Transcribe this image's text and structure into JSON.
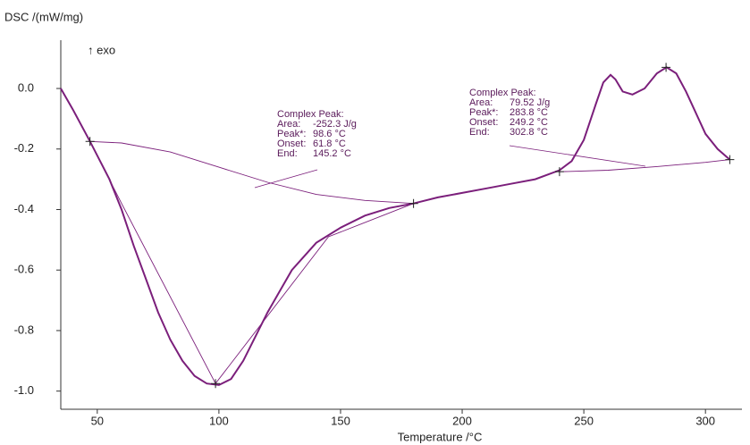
{
  "chart_data": {
    "type": "line",
    "y_label": "DSC /(mW/mg)",
    "x_label": "Temperature /°C",
    "direction_label": "↑ exo",
    "color": "#7b1f7b",
    "xlim": [
      35,
      315
    ],
    "xticks": [
      50,
      100,
      150,
      200,
      250,
      300
    ],
    "ylim": [
      -1.06,
      0.13
    ],
    "yticks": [
      {
        "value": 0,
        "label": "0.0"
      },
      -0.2,
      -0.4,
      -0.6,
      -0.8,
      {
        "value": -1,
        "label": "-1.0"
      }
    ],
    "x": [
      35,
      40,
      47,
      55,
      60,
      65,
      70,
      75,
      80,
      85,
      90,
      95,
      100,
      105,
      110,
      115,
      120,
      125,
      130,
      140,
      150,
      160,
      170,
      180,
      190,
      200,
      210,
      220,
      230,
      240,
      245,
      250,
      255,
      258,
      261,
      263,
      266,
      270,
      275,
      280,
      284,
      288,
      292,
      296,
      300,
      305,
      310
    ],
    "values": [
      0.0,
      -0.07,
      -0.175,
      -0.3,
      -0.4,
      -0.52,
      -0.63,
      -0.74,
      -0.83,
      -0.9,
      -0.95,
      -0.975,
      -0.98,
      -0.96,
      -0.9,
      -0.82,
      -0.74,
      -0.67,
      -0.6,
      -0.51,
      -0.46,
      -0.42,
      -0.395,
      -0.38,
      -0.36,
      -0.345,
      -0.33,
      -0.315,
      -0.3,
      -0.27,
      -0.24,
      -0.17,
      -0.05,
      0.02,
      0.045,
      0.03,
      -0.01,
      -0.02,
      0.0,
      0.05,
      0.07,
      0.05,
      -0.01,
      -0.08,
      -0.15,
      -0.2,
      -0.235
    ],
    "baselines": [
      {
        "x": [
          47,
          60,
          80,
          100,
          120,
          140,
          160,
          180
        ],
        "values": [
          -0.175,
          -0.18,
          -0.21,
          -0.26,
          -0.31,
          -0.35,
          -0.37,
          -0.38
        ]
      },
      {
        "x": [
          240,
          260,
          280,
          300,
          310
        ],
        "values": [
          -0.275,
          -0.27,
          -0.258,
          -0.244,
          -0.235
        ]
      },
      {
        "x": [
          47,
          60,
          98.6,
          145,
          180
        ],
        "values": [
          -0.175,
          -0.38,
          -0.975,
          -0.49,
          -0.38
        ]
      }
    ],
    "markers": {
      "x": [
        47,
        98.6,
        180,
        240,
        283.8,
        310
      ],
      "values": [
        -0.175,
        -0.975,
        -0.38,
        -0.275,
        0.07,
        -0.235
      ]
    },
    "annotations": [
      {
        "title": "Complex Peak:",
        "lines": [
          [
            "Area:",
            "-252.3 J/g"
          ],
          [
            "Peak*:",
            "98.6 °C"
          ],
          [
            "Onset:",
            "61.8 °C"
          ],
          [
            "End:",
            "145.2 °C"
          ]
        ]
      },
      {
        "title": "Complex Peak:",
        "lines": [
          [
            "Area:",
            "79.52 J/g"
          ],
          [
            "Peak*:",
            "283.8 °C"
          ],
          [
            "Onset:",
            "249.2 °C"
          ],
          [
            "End:",
            "302.8 °C"
          ]
        ]
      }
    ]
  }
}
